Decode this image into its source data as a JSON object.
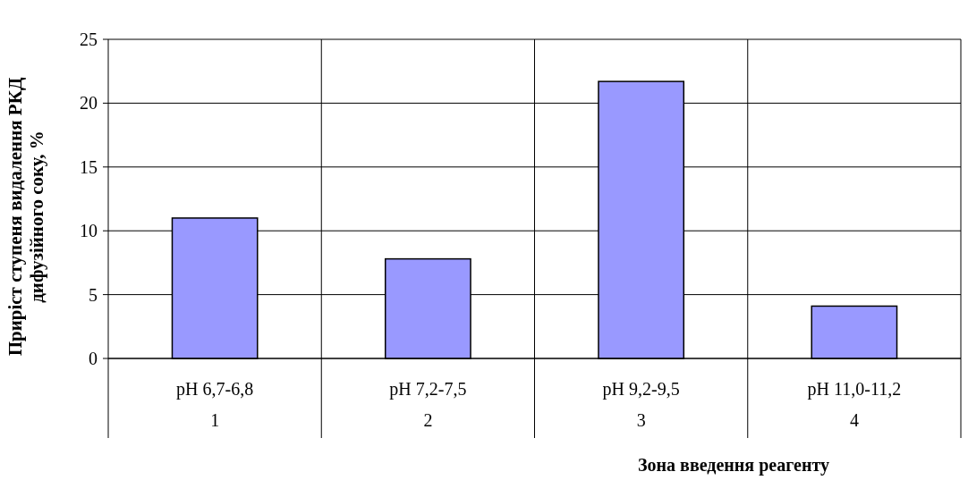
{
  "chart_data": {
    "type": "bar",
    "categories": [
      "pH 6,7-6,8\n1",
      "pH 7,2-7,5\n2",
      "pH 9,2-9,5\n3",
      "pH 11,0-11,2\n4"
    ],
    "values": [
      11,
      7.8,
      21.7,
      4.1
    ],
    "color": "#9999ff",
    "ylim": [
      0,
      25
    ],
    "yticks": [
      0,
      5,
      10,
      15,
      20,
      25
    ],
    "grid": true,
    "ylabel": "Приріст ступеня видалення РКД\nдифузійного соку, %",
    "xlabel": "Зона введення реагенту"
  }
}
